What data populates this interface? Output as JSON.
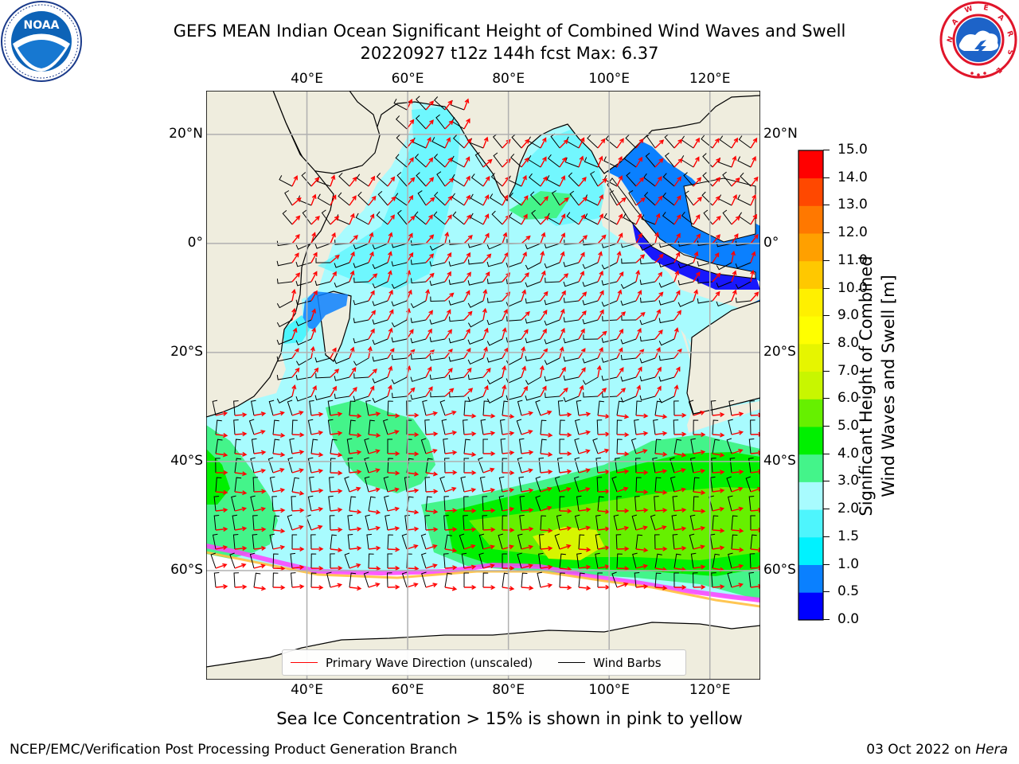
{
  "header": {
    "title_line1": "GEFS MEAN Indian Ocean Significant Height of Combined Wind Waves and Swell",
    "title_line2": "20220927 t12z 144h fcst   Max: 6.37"
  },
  "logos": {
    "left": {
      "name": "noaa-logo",
      "text": "NOAA",
      "ring_text": "NATIONAL OCEANIC AND ATMOSPHERIC ADMINISTRATION · U.S. DEPARTMENT OF COMMERCE"
    },
    "right": {
      "name": "nws-logo",
      "ring_text": "NATIONAL WEATHER SERVICE"
    }
  },
  "map": {
    "lon_range": [
      20,
      130
    ],
    "lat_range": [
      -80,
      28
    ],
    "lon_ticks": [
      {
        "value": 40,
        "label": "40°E"
      },
      {
        "value": 60,
        "label": "60°E"
      },
      {
        "value": 80,
        "label": "80°E"
      },
      {
        "value": 100,
        "label": "100°E"
      },
      {
        "value": 120,
        "label": "120°E"
      }
    ],
    "lat_ticks": [
      {
        "value": 20,
        "label": "20°N"
      },
      {
        "value": 0,
        "label": "0°"
      },
      {
        "value": -20,
        "label": "20°S"
      },
      {
        "value": -40,
        "label": "40°S"
      },
      {
        "value": -60,
        "label": "60°S"
      }
    ],
    "grid": true,
    "colors": {
      "land": "#efedde",
      "ocean_low": "#a6fbff",
      "coast": "#000000",
      "grid": "#b0b0b0",
      "wave_arrow": "#ff0000",
      "wind_barb": "#000000"
    },
    "wave_regions": [
      {
        "label": "2.0-3.0",
        "color": "#a8fbfe"
      },
      {
        "label": "1.5-2.0",
        "color": "#4ef5fd"
      },
      {
        "label": "1.0-1.5",
        "color": "#00f2ff"
      },
      {
        "label": "0.5-1.0",
        "color": "#0a80ff"
      },
      {
        "label": "3.0-4.0",
        "color": "#44f48a"
      },
      {
        "label": "4.0-5.0",
        "color": "#00f000"
      },
      {
        "label": "5.0-6.0",
        "color": "#66f000"
      },
      {
        "label": "6.0-7.0",
        "color": "#d7f500"
      }
    ]
  },
  "legend": {
    "items": [
      {
        "label": "Primary Wave Direction (unscaled)",
        "color": "#ff0000"
      },
      {
        "label": "Wind Barbs",
        "color": "#000000"
      }
    ]
  },
  "colorbar": {
    "label": "Significant Height of Combined Wind Waves and Swell [m]",
    "label_line1": "Significant Height of Combined",
    "label_line2": "Wind Waves and Swell [m]",
    "ticks": [
      "0.0",
      "0.5",
      "1.0",
      "1.5",
      "2.0",
      "3.0",
      "4.0",
      "5.0",
      "6.0",
      "7.0",
      "8.0",
      "9.0",
      "10.0",
      "11.0",
      "12.0",
      "13.0",
      "14.0",
      "15.0"
    ],
    "colors": [
      "#0000ff",
      "#0a80ff",
      "#00f2ff",
      "#4ef5fd",
      "#a8fbfe",
      "#44f48a",
      "#00f000",
      "#66f000",
      "#c8f600",
      "#e6f500",
      "#ffff00",
      "#fff000",
      "#ffc800",
      "#ffa000",
      "#ff7800",
      "#ff4800",
      "#ff0000"
    ]
  },
  "notes": {
    "sea_ice": "Sea Ice Concentration > 15% is shown in pink to yellow"
  },
  "footer": {
    "left": "NCEP/EMC/Verification Post Processing Product Generation Branch",
    "right_prefix": "03 Oct 2022 on ",
    "right_host": "Hera"
  }
}
